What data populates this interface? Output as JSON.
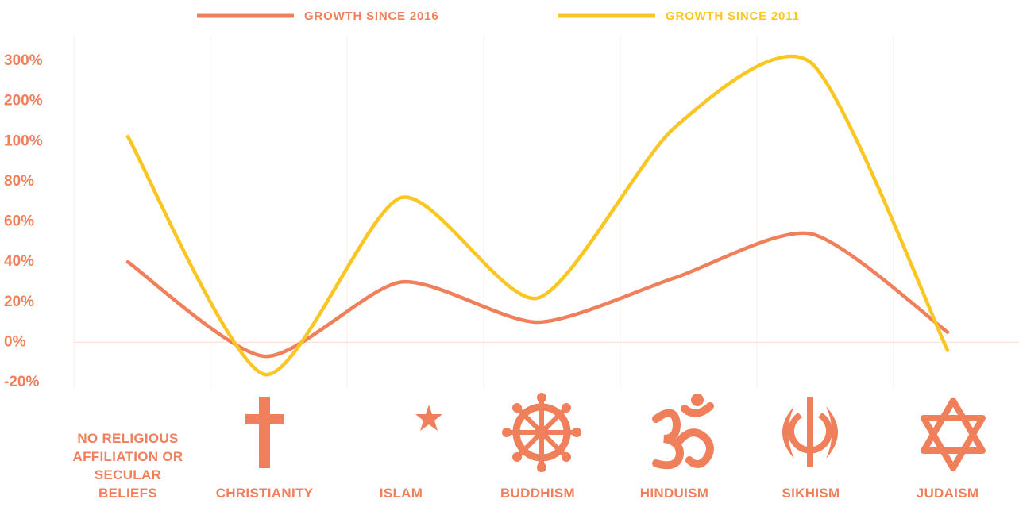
{
  "chart_data": {
    "type": "line",
    "categories": [
      "NO RELIGIOUS AFFILIATION OR SECULAR BELIEFS",
      "CHRISTIANITY",
      "ISLAM",
      "BUDDHISM",
      "HINDUISM",
      "SIKHISM",
      "JUDAISM"
    ],
    "series": [
      {
        "name": "GROWTH SINCE 2016",
        "color": "#f07f5b",
        "values": [
          40,
          -7,
          30,
          10,
          32,
          54,
          5
        ]
      },
      {
        "name": "GROWTH SINCE 2011",
        "color": "#f9c623",
        "values": [
          112,
          -16,
          72,
          22,
          134,
          296,
          -4
        ]
      }
    ],
    "ylim": [
      -20,
      300
    ],
    "yscale": "even-ticks",
    "yticks": [
      {
        "value": 300,
        "label": "300%"
      },
      {
        "value": 200,
        "label": "200%"
      },
      {
        "value": 100,
        "label": "100%"
      },
      {
        "value": 80,
        "label": "80%"
      },
      {
        "value": 60,
        "label": "60%"
      },
      {
        "value": 40,
        "label": "40%"
      },
      {
        "value": 20,
        "label": "20%"
      },
      {
        "value": 0,
        "label": "0%"
      },
      {
        "value": -20,
        "label": "-20%"
      }
    ],
    "legend": "top"
  }
}
